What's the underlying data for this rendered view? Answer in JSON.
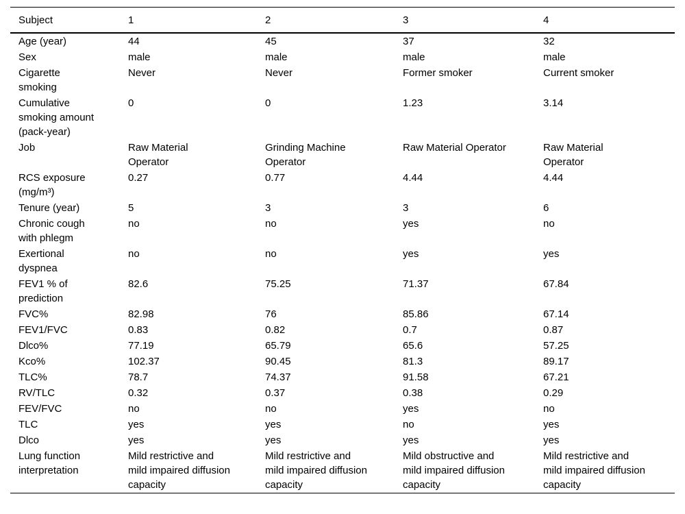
{
  "colors": {
    "background": "#ffffff",
    "text": "#000000",
    "rule": "#000000"
  },
  "table": {
    "headers": [
      "Subject",
      "1",
      "2",
      "3",
      "4"
    ],
    "rows": [
      {
        "label": "Age (year)",
        "values": [
          "44",
          "45",
          "37",
          "32"
        ]
      },
      {
        "label": "Sex",
        "values": [
          "male",
          "male",
          "male",
          "male"
        ]
      },
      {
        "label": "Cigarette\nsmoking",
        "values": [
          "Never",
          "Never",
          "Former smoker",
          "Current smoker"
        ]
      },
      {
        "label": "Cumulative\nsmoking amount\n(pack-year)",
        "values": [
          "0",
          "0",
          "1.23",
          "3.14"
        ]
      },
      {
        "label": "Job",
        "values": [
          "Raw Material\nOperator",
          "Grinding Machine\nOperator",
          "Raw Material Operator",
          "Raw Material\nOperator"
        ]
      },
      {
        "label": "RCS exposure\n(mg/m³)",
        "values": [
          "0.27",
          "0.77",
          "4.44",
          "4.44"
        ]
      },
      {
        "label": "Tenure (year)",
        "values": [
          "5",
          "3",
          "3",
          "6"
        ]
      },
      {
        "label": "Chronic cough\nwith phlegm",
        "values": [
          "no",
          "no",
          "yes",
          "no"
        ]
      },
      {
        "label": "Exertional\ndyspnea",
        "values": [
          "no",
          "no",
          "yes",
          "yes"
        ]
      },
      {
        "label": "FEV1 % of\nprediction",
        "values": [
          "82.6",
          "75.25",
          "71.37",
          "67.84"
        ]
      },
      {
        "label": "FVC%",
        "values": [
          "82.98",
          "76",
          "85.86",
          "67.14"
        ]
      },
      {
        "label": "FEV1/FVC",
        "values": [
          "0.83",
          "0.82",
          "0.7",
          "0.87"
        ]
      },
      {
        "label": "Dlco%",
        "values": [
          "77.19",
          "65.79",
          "65.6",
          "57.25"
        ]
      },
      {
        "label": "Kco%",
        "values": [
          "102.37",
          "90.45",
          "81.3",
          "89.17"
        ]
      },
      {
        "label": "TLC%",
        "values": [
          "78.7",
          "74.37",
          "91.58",
          "67.21"
        ]
      },
      {
        "label": "RV/TLC",
        "values": [
          "0.32",
          "0.37",
          "0.38",
          "0.29"
        ]
      },
      {
        "label": "FEV/FVC",
        "values": [
          "no",
          "no",
          "yes",
          "no"
        ]
      },
      {
        "label": "TLC",
        "values": [
          "yes",
          "yes",
          "no",
          "yes"
        ]
      },
      {
        "label": "Dlco",
        "values": [
          "yes",
          "yes",
          "yes",
          "yes"
        ]
      },
      {
        "label": "Lung function\ninterpretation",
        "values": [
          "Mild restrictive and\nmild impaired diffusion\ncapacity",
          "Mild restrictive and\nmild impaired diffusion\ncapacity",
          "Mild obstructive and\nmild impaired diffusion\ncapacity",
          "Mild restrictive and\nmild impaired diffusion\ncapacity"
        ]
      }
    ]
  }
}
